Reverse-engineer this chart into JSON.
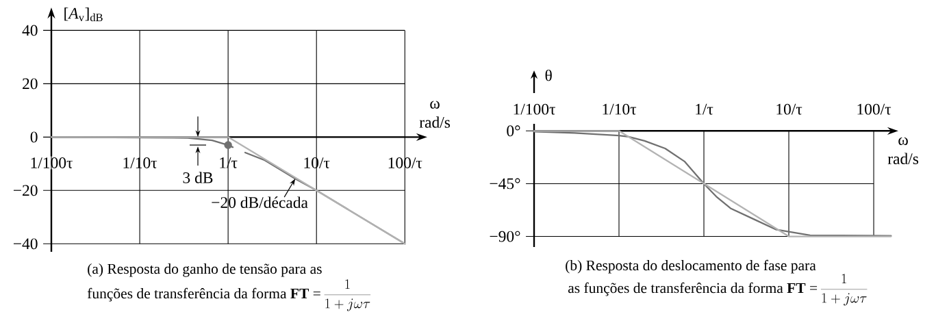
{
  "chart_data": [
    {
      "type": "line",
      "xlabel": "ω rad/s",
      "ylabel": "[*A*$_{v}$]$_{dB}$",
      "log": "x",
      "xlim": [
        0.01,
        150
      ],
      "ylim": [
        -43,
        46
      ],
      "xticks": [
        {
          "value": 0.01,
          "label": "1/100τ"
        },
        {
          "value": 0.1,
          "label": "1/10τ"
        },
        {
          "value": 1,
          "label": "1/τ"
        },
        {
          "value": 10,
          "label": "10/τ"
        },
        {
          "value": 100,
          "label": "100/τ"
        }
      ],
      "yticks": [
        {
          "value": -40,
          "label": "−40"
        },
        {
          "value": -20,
          "label": "−20"
        },
        0,
        20,
        40
      ],
      "grid": true,
      "series": [
        {
          "color": "#707070",
          "x": [
            0.01,
            0.35,
            0.66,
            1,
            1.13,
            1.3,
            1.56,
            2.6,
            5.75,
            10,
            100
          ],
          "values": [
            0,
            -0.3,
            -1.2,
            -3,
            -3.8,
            null,
            -5.8,
            -8.7,
            -15.6,
            -20,
            -40
          ]
        },
        {
          "color": "#b3b3b3",
          "x": [
            0.01,
            1,
            100
          ],
          "values": [
            0,
            0,
            -40
          ]
        },
        {
          "type": "scatter",
          "marker": "circle",
          "color": "#707070",
          "x": [
            1
          ],
          "values": [
            -3
          ]
        }
      ],
      "annotations": [
        "3 dB",
        {
          "text": "−20 dB/década",
          "x": 5.75,
          "y": -15.6
        },
        "(a) Resposta do ganho de tensão para as",
        "funções de transferência da forma **FT** =",
        "\\frac{1}{1 + j\\omega\\tau}"
      ]
    },
    {
      "type": "line",
      "xlabel": "ω rad/s",
      "ylabel": "θ",
      "log": "x",
      "xlim": [
        0.01,
        162
      ],
      "ylim": [
        -99,
        6
      ],
      "xticks": [
        {
          "value": 0.01,
          "label": "1/100τ"
        },
        {
          "value": 0.1,
          "label": "1/10τ"
        },
        {
          "value": 1,
          "label": "1/τ"
        },
        {
          "value": 10,
          "label": "10/τ"
        },
        {
          "value": 100,
          "label": "100/τ"
        }
      ],
      "yticks": [
        {
          "value": -90,
          "label": "−90°"
        },
        {
          "value": -45,
          "label": "−45°"
        },
        {
          "value": 0,
          "label": "0°"
        }
      ],
      "grid": true,
      "series": [
        {
          "color": "#707070",
          "x": [
            0.01,
            0.03,
            0.1,
            0.13,
            0.2,
            0.35,
            0.59,
            1,
            1.4,
            2.06,
            3.8,
            7,
            10,
            17.8,
            160
          ],
          "values": [
            -0.6,
            -1.8,
            -4,
            -5,
            -8.5,
            -15,
            -26,
            -45,
            -56,
            -66,
            -75,
            -84,
            -86,
            -89,
            -89.5
          ]
        },
        {
          "color": "#b3b3b3",
          "x": [
            0.01,
            0.1,
            10,
            160
          ],
          "values": [
            0,
            0,
            -90,
            -90
          ]
        }
      ],
      "annotations": [
        "(b) Resposta do deslocamento de fase para",
        "as funções de transferência da forma **FT** =",
        "\\frac{1}{1 + j\\omega\\tau}"
      ]
    }
  ]
}
